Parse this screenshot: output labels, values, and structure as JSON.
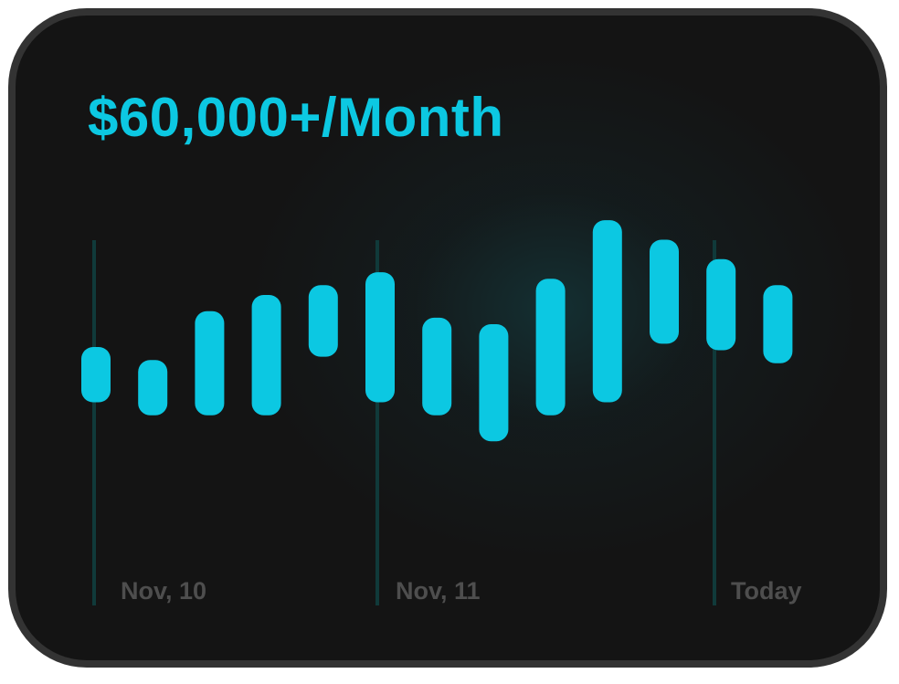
{
  "header": {
    "title": "$60,000+/Month"
  },
  "colors": {
    "accent": "#0cc8e2",
    "card_background": "#141414",
    "card_border": "#333333",
    "gridline": "#103a3a",
    "label": "#4e4e4e"
  },
  "chart_data": {
    "type": "bar",
    "subtype": "floating-range",
    "title": "$60,000+/Month",
    "xlabel": "",
    "ylabel": "",
    "ylim": [
      0,
      100
    ],
    "grid": false,
    "x_tick_labels": [
      "Nov, 10",
      "Nov, 11",
      "Today"
    ],
    "values": [
      {
        "low": 42,
        "high": 59
      },
      {
        "low": 38,
        "high": 55
      },
      {
        "low": 38,
        "high": 70
      },
      {
        "low": 38,
        "high": 75
      },
      {
        "low": 56,
        "high": 78
      },
      {
        "low": 42,
        "high": 82
      },
      {
        "low": 38,
        "high": 68
      },
      {
        "low": 30,
        "high": 66
      },
      {
        "low": 38,
        "high": 80
      },
      {
        "low": 42,
        "high": 98
      },
      {
        "low": 60,
        "high": 92
      },
      {
        "low": 58,
        "high": 86
      },
      {
        "low": 54,
        "high": 78
      }
    ]
  }
}
